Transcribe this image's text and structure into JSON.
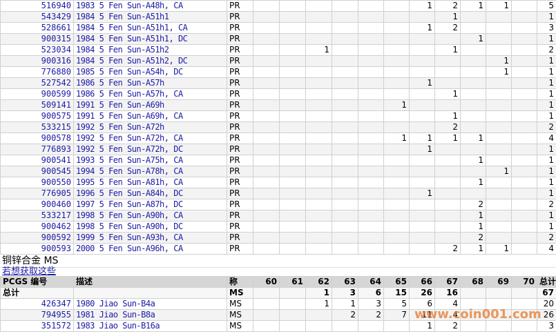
{
  "pr_rows": [
    {
      "pcgs": "516940",
      "desc": "1983 5 Fen Sun-A48h, CA",
      "type": "PR",
      "grades": [
        null,
        null,
        null,
        null,
        null,
        null,
        1,
        2,
        1,
        1,
        null
      ],
      "total": 5
    },
    {
      "pcgs": "543429",
      "desc": "1984 5 Fen Sun-A51h1",
      "type": "PR",
      "grades": [
        null,
        null,
        null,
        null,
        null,
        null,
        null,
        1,
        null,
        null,
        null
      ],
      "total": 1
    },
    {
      "pcgs": "528661",
      "desc": "1984 5 Fen Sun-A51h1, CA",
      "type": "PR",
      "grades": [
        null,
        null,
        null,
        null,
        null,
        null,
        1,
        2,
        null,
        null,
        null
      ],
      "total": 3
    },
    {
      "pcgs": "900315",
      "desc": "1984 5 Fen Sun-A51h1, DC",
      "type": "PR",
      "grades": [
        null,
        null,
        null,
        null,
        null,
        null,
        null,
        null,
        1,
        null,
        null
      ],
      "total": 1
    },
    {
      "pcgs": "523034",
      "desc": "1984 5 Fen Sun-A51h2",
      "type": "PR",
      "grades": [
        null,
        null,
        1,
        null,
        null,
        null,
        null,
        1,
        null,
        null,
        null
      ],
      "total": 2
    },
    {
      "pcgs": "900316",
      "desc": "1984 5 Fen Sun-A51h2, DC",
      "type": "PR",
      "grades": [
        null,
        null,
        null,
        null,
        null,
        null,
        null,
        null,
        null,
        1,
        null
      ],
      "total": 1
    },
    {
      "pcgs": "776880",
      "desc": "1985 5 Fen Sun-A54h, DC",
      "type": "PR",
      "grades": [
        null,
        null,
        null,
        null,
        null,
        null,
        null,
        null,
        null,
        1,
        null
      ],
      "total": 1
    },
    {
      "pcgs": "527542",
      "desc": "1986 5 Fen Sun-A57h",
      "type": "PR",
      "grades": [
        null,
        null,
        null,
        null,
        null,
        null,
        1,
        null,
        null,
        null,
        null
      ],
      "total": 1
    },
    {
      "pcgs": "900599",
      "desc": "1986 5 Fen Sun-A57h, CA",
      "type": "PR",
      "grades": [
        null,
        null,
        null,
        null,
        null,
        null,
        null,
        1,
        null,
        null,
        null
      ],
      "total": 1
    },
    {
      "pcgs": "509141",
      "desc": "1991 5 Fen Sun-A69h",
      "type": "PR",
      "grades": [
        null,
        null,
        null,
        null,
        null,
        1,
        null,
        null,
        null,
        null,
        null
      ],
      "total": 1
    },
    {
      "pcgs": "900575",
      "desc": "1991 5 Fen Sun-A69h, CA",
      "type": "PR",
      "grades": [
        null,
        null,
        null,
        null,
        null,
        null,
        null,
        1,
        null,
        null,
        null
      ],
      "total": 1
    },
    {
      "pcgs": "533215",
      "desc": "1992 5 Fen Sun-A72h",
      "type": "PR",
      "grades": [
        null,
        null,
        null,
        null,
        null,
        null,
        null,
        2,
        null,
        null,
        null
      ],
      "total": 2
    },
    {
      "pcgs": "900578",
      "desc": "1992 5 Fen Sun-A72h, CA",
      "type": "PR",
      "grades": [
        null,
        null,
        null,
        null,
        null,
        1,
        1,
        1,
        1,
        null,
        null
      ],
      "total": 4
    },
    {
      "pcgs": "776893",
      "desc": "1992 5 Fen Sun-A72h, DC",
      "type": "PR",
      "grades": [
        null,
        null,
        null,
        null,
        null,
        null,
        1,
        null,
        null,
        null,
        null
      ],
      "total": 1
    },
    {
      "pcgs": "900541",
      "desc": "1993 5 Fen Sun-A75h, CA",
      "type": "PR",
      "grades": [
        null,
        null,
        null,
        null,
        null,
        null,
        null,
        null,
        1,
        null,
        null
      ],
      "total": 1
    },
    {
      "pcgs": "900545",
      "desc": "1994 5 Fen Sun-A78h, CA",
      "type": "PR",
      "grades": [
        null,
        null,
        null,
        null,
        null,
        null,
        null,
        null,
        null,
        1,
        null
      ],
      "total": 1
    },
    {
      "pcgs": "900550",
      "desc": "1995 5 Fen Sun-A81h, CA",
      "type": "PR",
      "grades": [
        null,
        null,
        null,
        null,
        null,
        null,
        null,
        null,
        1,
        null,
        null
      ],
      "total": 1
    },
    {
      "pcgs": "776905",
      "desc": "1996 5 Fen Sun-A84h, DC",
      "type": "PR",
      "grades": [
        null,
        null,
        null,
        null,
        null,
        null,
        1,
        null,
        null,
        null,
        null
      ],
      "total": 1
    },
    {
      "pcgs": "900460",
      "desc": "1997 5 Fen Sun-A87h, DC",
      "type": "PR",
      "grades": [
        null,
        null,
        null,
        null,
        null,
        null,
        null,
        null,
        2,
        null,
        null
      ],
      "total": 2
    },
    {
      "pcgs": "533217",
      "desc": "1998 5 Fen Sun-A90h, CA",
      "type": "PR",
      "grades": [
        null,
        null,
        null,
        null,
        null,
        null,
        null,
        null,
        1,
        null,
        null
      ],
      "total": 1
    },
    {
      "pcgs": "900462",
      "desc": "1998 5 Fen Sun-A90h, DC",
      "type": "PR",
      "grades": [
        null,
        null,
        null,
        null,
        null,
        null,
        null,
        null,
        1,
        null,
        null
      ],
      "total": 1
    },
    {
      "pcgs": "900592",
      "desc": "1999 5 Fen Sun-A93h, CA",
      "type": "PR",
      "grades": [
        null,
        null,
        null,
        null,
        null,
        null,
        null,
        null,
        2,
        null,
        null
      ],
      "total": 2
    },
    {
      "pcgs": "900593",
      "desc": "2000 5 Fen Sun-A96h, CA",
      "type": "PR",
      "grades": [
        null,
        null,
        null,
        null,
        null,
        null,
        null,
        2,
        1,
        1,
        null
      ],
      "total": 4
    }
  ],
  "ms_section": {
    "title": "铜锌合金 MS",
    "link": "若想获取这些",
    "header": [
      "PCGS 编号",
      "描述",
      "称",
      "60",
      "61",
      "62",
      "63",
      "64",
      "65",
      "66",
      "67",
      "68",
      "69",
      "70",
      "总计"
    ],
    "total_row": {
      "label": "总计",
      "type": "MS",
      "grades": [
        null,
        null,
        1,
        3,
        6,
        15,
        26,
        16,
        null,
        null,
        null
      ],
      "total": 67
    },
    "rows": [
      {
        "pcgs": "426347",
        "desc": "1980 Jiao Sun-B4a",
        "type": "MS",
        "grades": [
          null,
          null,
          1,
          1,
          3,
          5,
          6,
          4,
          null,
          null,
          null
        ],
        "total": 20
      },
      {
        "pcgs": "794955",
        "desc": "1981 Jiao Sun-B8a",
        "type": "MS",
        "grades": [
          null,
          null,
          null,
          2,
          2,
          7,
          11,
          4,
          null,
          null,
          null
        ],
        "total": 26
      },
      {
        "pcgs": "351572",
        "desc": "1983 Jiao Sun-B16a",
        "type": "MS",
        "grades": [
          null,
          null,
          null,
          null,
          null,
          null,
          1,
          2,
          null,
          null,
          null
        ],
        "total": 3
      }
    ]
  },
  "watermark": "www.coin001.com"
}
